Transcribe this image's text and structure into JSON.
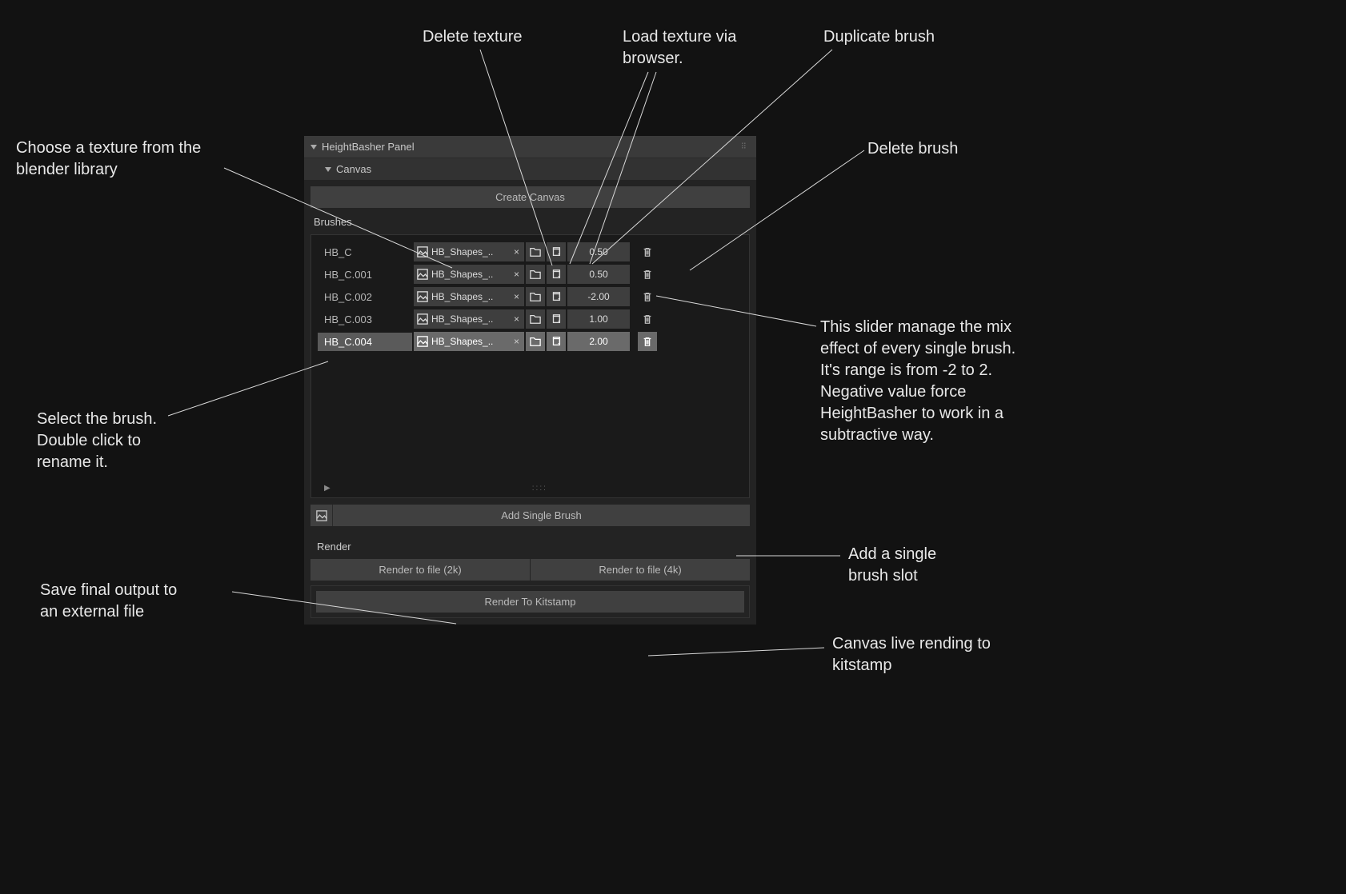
{
  "annotations": {
    "deleteTexture": "Delete texture",
    "loadTexture": "Load texture via\nbrowser.",
    "duplicateBrush": "Duplicate brush",
    "chooseTexture": "Choose a texture from the\nblender library",
    "deleteBrush": "Delete brush",
    "selectBrush": "Select the brush.\nDouble click to\nrename it.",
    "sliderDesc": "This slider manage the mix\neffect of every single brush.\nIt's range is from -2 to 2.\nNegative value force\nHeightBasher to work in a\nsubtractive way.",
    "saveOutput": "Save final output to\nan external file",
    "addSingle": "Add a single\nbrush slot",
    "liveRender": "Canvas live rending to\nkitstamp"
  },
  "panel": {
    "title": "HeightBasher Panel",
    "canvas": {
      "label": "Canvas",
      "createBtn": "Create Canvas"
    },
    "brushes": {
      "label": "Brushes",
      "addSingle": "Add Single Brush",
      "rows": [
        {
          "name": "HB_C",
          "texture": "HB_Shapes_..",
          "value": "0.50",
          "selected": false
        },
        {
          "name": "HB_C.001",
          "texture": "HB_Shapes_..",
          "value": "0.50",
          "selected": false
        },
        {
          "name": "HB_C.002",
          "texture": "HB_Shapes_..",
          "value": "-2.00",
          "selected": false
        },
        {
          "name": "HB_C.003",
          "texture": "HB_Shapes_..",
          "value": "1.00",
          "selected": false
        },
        {
          "name": "HB_C.004",
          "texture": "HB_Shapes_..",
          "value": "2.00",
          "selected": true
        }
      ]
    },
    "render": {
      "label": "Render",
      "toFile2k": "Render to file (2k)",
      "toFile4k": "Render to file (4k)",
      "toKitstamp": "Render To Kitstamp"
    }
  },
  "colors": {
    "bg": "#121212",
    "panelBody": "#232323",
    "panelHeader": "#3a3a3a",
    "button": "#404040",
    "field": "#3e3e3e",
    "selected": "#6a6a6a",
    "text": "#e0e0e0",
    "line": "#d8d8d8"
  }
}
